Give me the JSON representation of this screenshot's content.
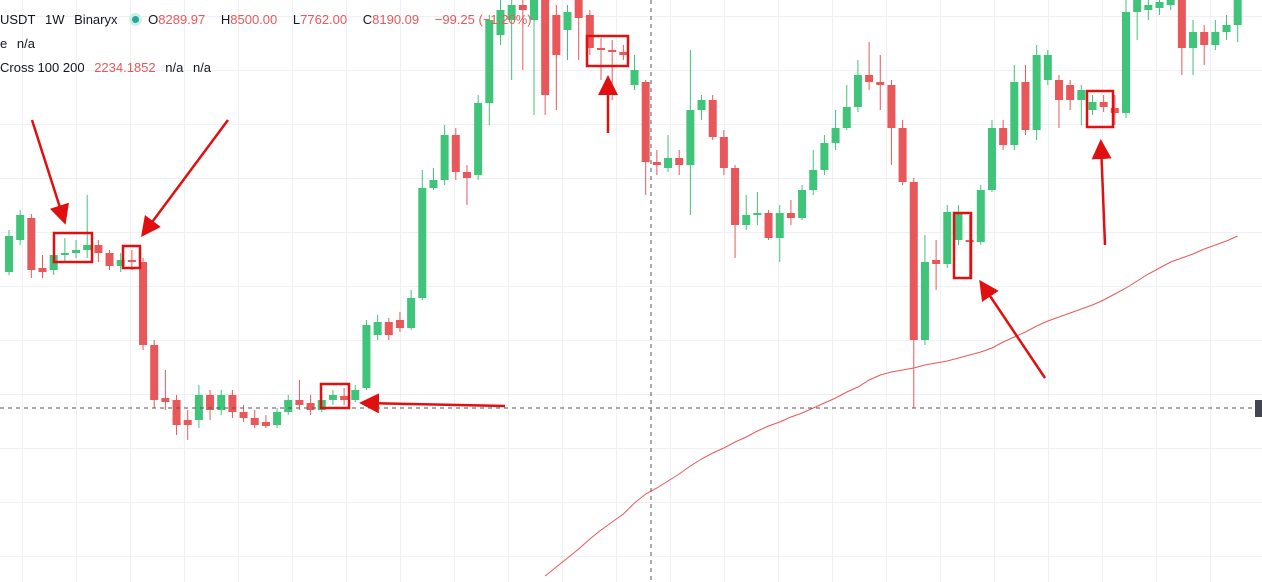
{
  "chart_data": {
    "type": "candlestick",
    "symbol": "USDT",
    "interval": "1W",
    "exchange": "Binaryx",
    "ohlc_legend": [
      {
        "label": "O",
        "value": "8289.97"
      },
      {
        "label": "H",
        "value": "8500.00"
      },
      {
        "label": "L",
        "value": "7762.00"
      },
      {
        "label": "C",
        "value": "8190.09"
      }
    ],
    "change": "−99.25 (−1.20%)",
    "indicators": [
      {
        "name": "e",
        "values": [
          "n/a"
        ]
      },
      {
        "name": "Cross 100 200",
        "values": [
          "2234.1852",
          "n/a",
          "n/a"
        ]
      }
    ],
    "up_color": "#3fc47a",
    "down_color": "#e8585b",
    "line_color": "#e8585b",
    "ylim": [
      0,
      580
    ],
    "candles": [
      [
        308,
        350,
        305,
        344
      ],
      [
        340,
        370,
        335,
        365
      ],
      [
        362,
        366,
        302,
        310
      ],
      [
        312,
        325,
        302,
        308
      ],
      [
        310,
        340,
        305,
        325
      ],
      [
        325,
        342,
        318,
        327
      ],
      [
        327,
        340,
        322,
        330
      ],
      [
        330,
        385,
        322,
        335
      ],
      [
        335,
        340,
        318,
        327
      ],
      [
        327,
        330,
        310,
        314
      ],
      [
        314,
        327,
        308,
        320
      ],
      [
        320,
        330,
        310,
        318
      ],
      [
        318,
        322,
        230,
        235
      ],
      [
        235,
        240,
        172,
        180
      ],
      [
        182,
        210,
        170,
        178
      ],
      [
        180,
        185,
        145,
        155
      ],
      [
        160,
        170,
        140,
        155
      ],
      [
        160,
        195,
        152,
        185
      ],
      [
        185,
        190,
        160,
        170
      ],
      [
        170,
        190,
        165,
        185
      ],
      [
        185,
        190,
        162,
        168
      ],
      [
        168,
        175,
        158,
        162
      ],
      [
        162,
        170,
        152,
        155
      ],
      [
        158,
        165,
        152,
        154
      ],
      [
        155,
        172,
        152,
        168
      ],
      [
        168,
        185,
        165,
        180
      ],
      [
        180,
        200,
        170,
        175
      ],
      [
        177,
        185,
        165,
        170
      ],
      [
        170,
        185,
        168,
        180
      ],
      [
        180,
        190,
        175,
        185
      ],
      [
        184,
        192,
        175,
        180
      ],
      [
        180,
        195,
        178,
        190
      ],
      [
        192,
        260,
        190,
        255
      ],
      [
        245,
        265,
        240,
        258
      ],
      [
        258,
        262,
        240,
        245
      ],
      [
        260,
        268,
        248,
        252
      ],
      [
        252,
        290,
        250,
        282
      ],
      [
        282,
        410,
        280,
        392
      ],
      [
        392,
        412,
        390,
        400
      ],
      [
        400,
        455,
        395,
        445
      ],
      [
        445,
        452,
        400,
        408
      ],
      [
        408,
        415,
        375,
        402
      ],
      [
        405,
        485,
        400,
        477
      ],
      [
        477,
        565,
        455,
        560
      ],
      [
        545,
        580,
        535,
        570
      ],
      [
        560,
        580,
        500,
        575
      ],
      [
        575,
        580,
        510,
        570
      ],
      [
        560,
        580,
        465,
        580
      ],
      [
        580,
        580,
        465,
        485
      ],
      [
        565,
        575,
        470,
        525
      ],
      [
        550,
        575,
        520,
        568
      ],
      [
        580,
        580,
        520,
        562
      ],
      [
        565,
        570,
        525,
        532
      ],
      [
        532,
        542,
        500,
        530
      ],
      [
        530,
        540,
        480,
        528
      ],
      [
        528,
        535,
        520,
        525
      ],
      [
        495,
        525,
        490,
        510
      ],
      [
        498,
        500,
        385,
        418
      ],
      [
        418,
        430,
        405,
        415
      ],
      [
        412,
        445,
        408,
        422
      ],
      [
        422,
        430,
        405,
        415
      ],
      [
        415,
        530,
        365,
        470
      ],
      [
        470,
        485,
        460,
        480
      ],
      [
        480,
        485,
        440,
        443
      ],
      [
        443,
        450,
        405,
        412
      ],
      [
        412,
        415,
        322,
        355
      ],
      [
        355,
        385,
        350,
        365
      ],
      [
        365,
        388,
        355,
        367
      ],
      [
        367,
        370,
        340,
        342
      ],
      [
        342,
        375,
        318,
        367
      ],
      [
        367,
        380,
        355,
        362
      ],
      [
        362,
        395,
        360,
        390
      ],
      [
        390,
        430,
        385,
        410
      ],
      [
        410,
        445,
        405,
        437
      ],
      [
        437,
        470,
        430,
        452
      ],
      [
        452,
        495,
        450,
        473
      ],
      [
        473,
        520,
        468,
        505
      ],
      [
        505,
        538,
        490,
        498
      ],
      [
        498,
        525,
        470,
        495
      ],
      [
        495,
        500,
        415,
        452
      ],
      [
        452,
        460,
        395,
        398
      ],
      [
        398,
        402,
        172,
        240
      ],
      [
        240,
        345,
        235,
        318
      ],
      [
        320,
        340,
        290,
        316
      ],
      [
        316,
        375,
        312,
        368
      ],
      [
        340,
        375,
        335,
        368
      ],
      [
        340,
        365,
        302,
        338
      ],
      [
        338,
        395,
        335,
        390
      ],
      [
        390,
        460,
        388,
        452
      ],
      [
        452,
        460,
        430,
        435
      ],
      [
        435,
        515,
        430,
        498
      ],
      [
        498,
        515,
        445,
        450
      ],
      [
        450,
        535,
        440,
        525
      ],
      [
        500,
        530,
        495,
        525
      ],
      [
        500,
        505,
        452,
        480
      ],
      [
        495,
        500,
        470,
        480
      ],
      [
        480,
        495,
        455,
        490
      ],
      [
        470,
        485,
        465,
        478
      ],
      [
        478,
        485,
        468,
        473
      ],
      [
        472,
        485,
        455,
        467
      ],
      [
        467,
        580,
        462,
        568
      ],
      [
        568,
        580,
        540,
        580
      ],
      [
        570,
        580,
        560,
        575
      ],
      [
        572,
        580,
        565,
        578
      ],
      [
        575,
        580,
        570,
        580
      ],
      [
        580,
        580,
        505,
        532
      ],
      [
        532,
        560,
        505,
        548
      ],
      [
        548,
        555,
        515,
        535
      ],
      [
        535,
        560,
        530,
        548
      ],
      [
        548,
        565,
        540,
        555
      ],
      [
        555,
        580,
        538,
        580
      ]
    ],
    "line_values": [
      null,
      null,
      null,
      null,
      null,
      null,
      null,
      null,
      null,
      null,
      null,
      null,
      null,
      null,
      null,
      null,
      null,
      null,
      null,
      null,
      null,
      null,
      null,
      null,
      null,
      null,
      null,
      null,
      null,
      null,
      null,
      null,
      null,
      null,
      null,
      null,
      null,
      null,
      null,
      null,
      null,
      null,
      null,
      null,
      null,
      null,
      null,
      null,
      4,
      13,
      22,
      31,
      41,
      50,
      58,
      66,
      77,
      86,
      92,
      99,
      106,
      114,
      121,
      127,
      132,
      138,
      143,
      149,
      154,
      158,
      163,
      167,
      172,
      177,
      182,
      188,
      193,
      200,
      205,
      208,
      210,
      212,
      215,
      217,
      219,
      222,
      225,
      228,
      232,
      238,
      243,
      248,
      254,
      259,
      263,
      267,
      271,
      275,
      280,
      286,
      292,
      299,
      306,
      312,
      318,
      322,
      326,
      331,
      335,
      339,
      344
    ]
  }
}
